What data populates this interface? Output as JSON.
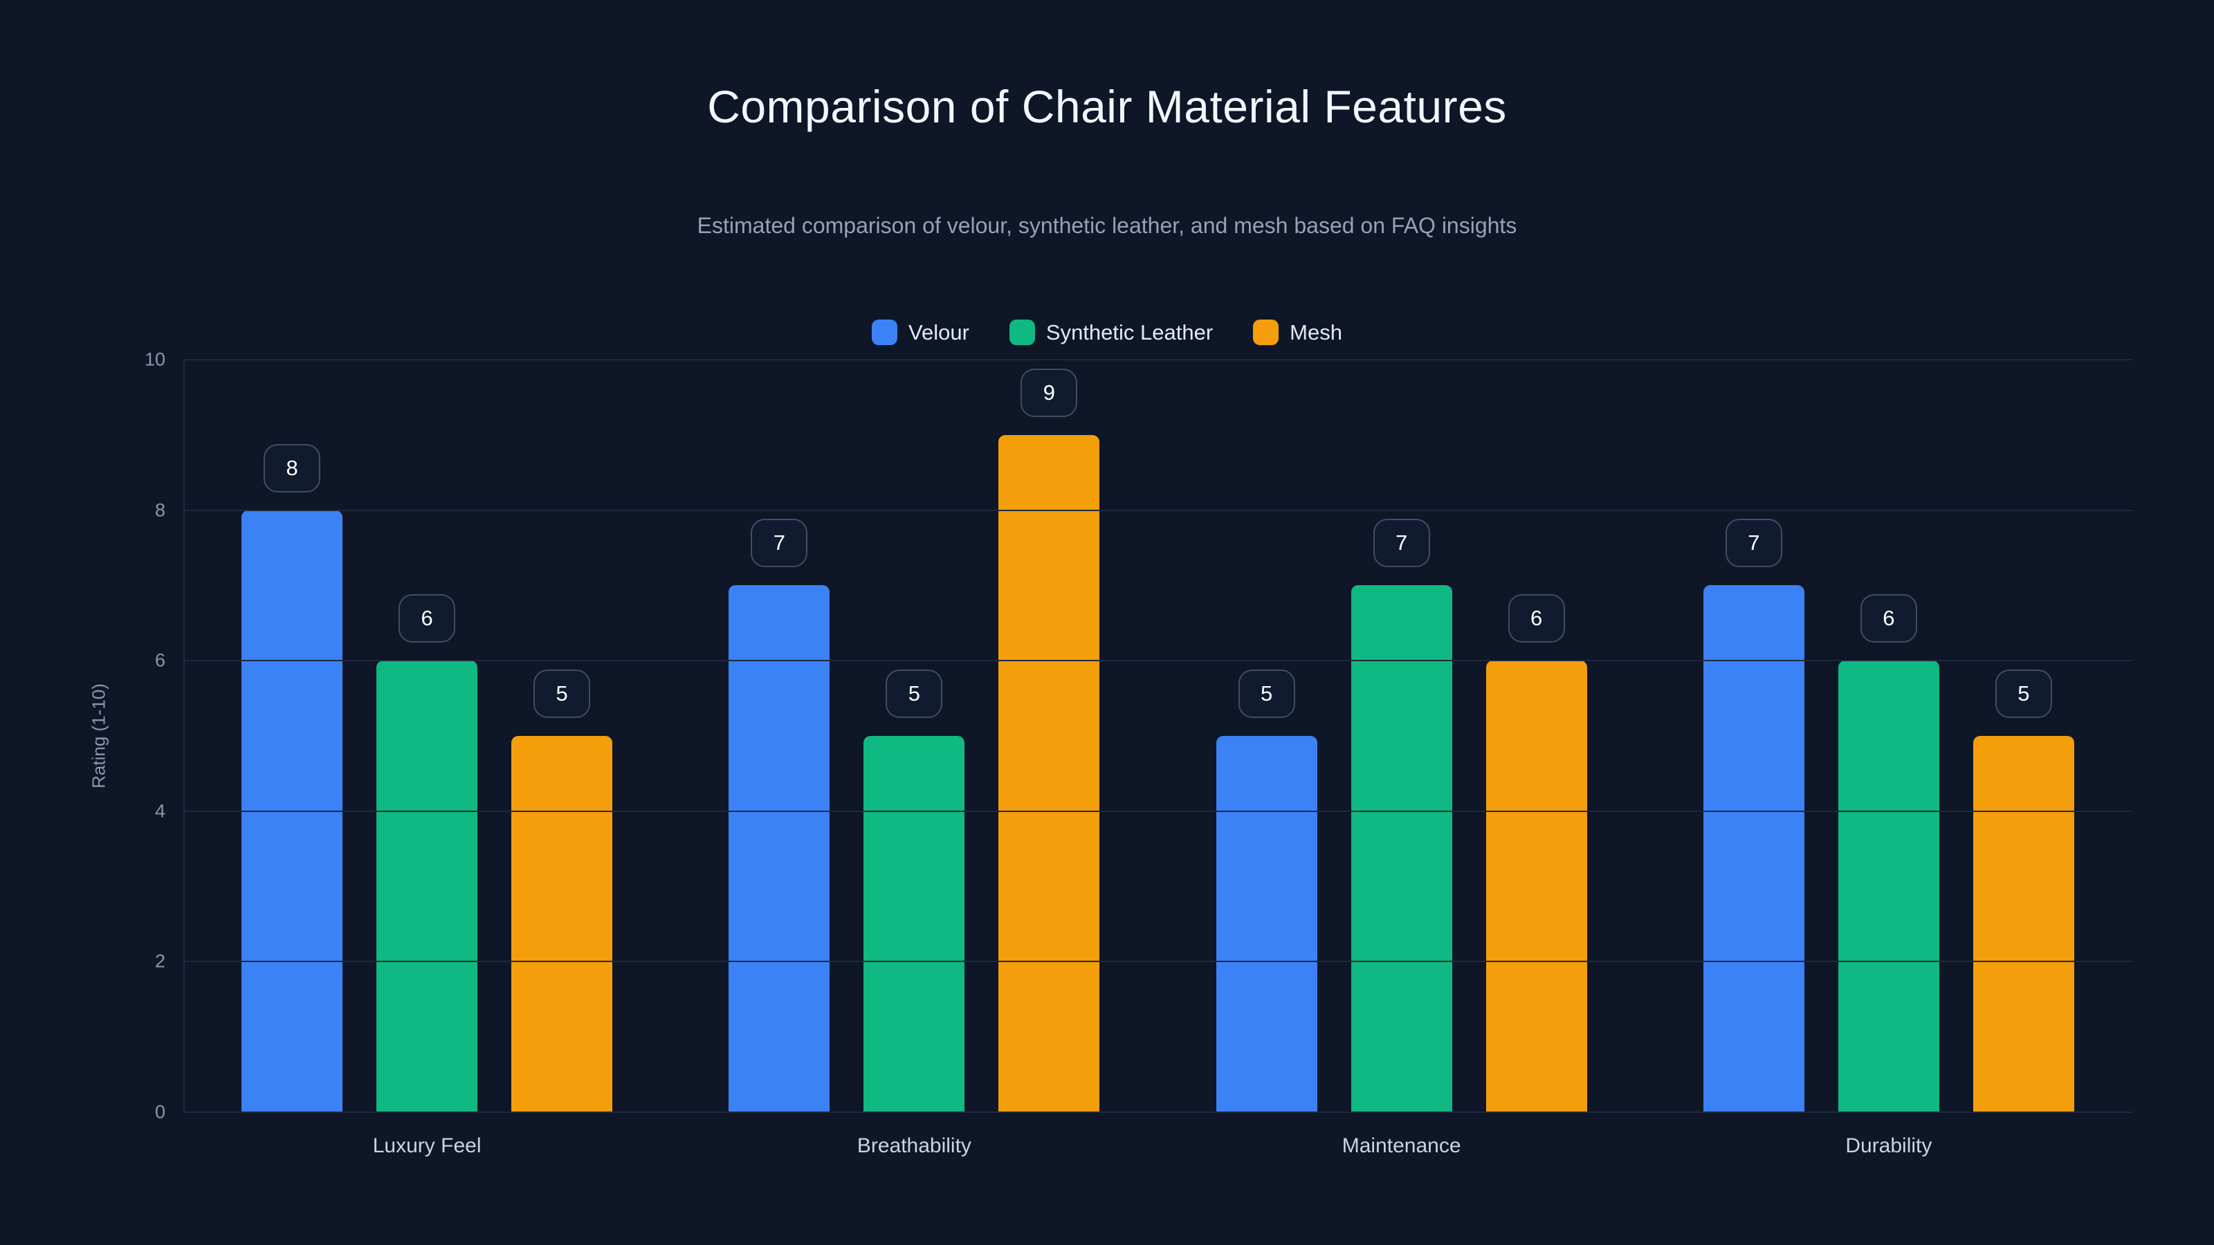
{
  "chart_data": {
    "type": "bar",
    "title": "Comparison of Chair Material Features",
    "subtitle": "Estimated comparison of velour, synthetic leather, and mesh based on FAQ insights",
    "categories": [
      "Luxury Feel",
      "Breathability",
      "Maintenance",
      "Durability"
    ],
    "series": [
      {
        "name": "Velour",
        "color": "#3b82f6",
        "values": [
          8,
          7,
          5,
          7
        ]
      },
      {
        "name": "Synthetic Leather",
        "color": "#10b981",
        "values": [
          6,
          5,
          7,
          6
        ]
      },
      {
        "name": "Mesh",
        "color": "#f59e0b",
        "values": [
          5,
          9,
          6,
          5
        ]
      }
    ],
    "ylabel": "Rating (1-10)",
    "ylim": [
      0,
      10
    ],
    "yticks": [
      0,
      2,
      4,
      6,
      8,
      10
    ],
    "grid": true,
    "legend_position": "top"
  },
  "colors": {
    "background": "#0e1627",
    "title": "#f3f6fb",
    "subtitle": "#94a3b8",
    "grid": "#1d2940",
    "axis_label": "#8a99ad",
    "category_label": "#cbd5e1",
    "pill_border": "#414d63",
    "pill_bg": "#101b30",
    "pill_text": "#ffffff",
    "legend_text": "#e5eaf2"
  }
}
